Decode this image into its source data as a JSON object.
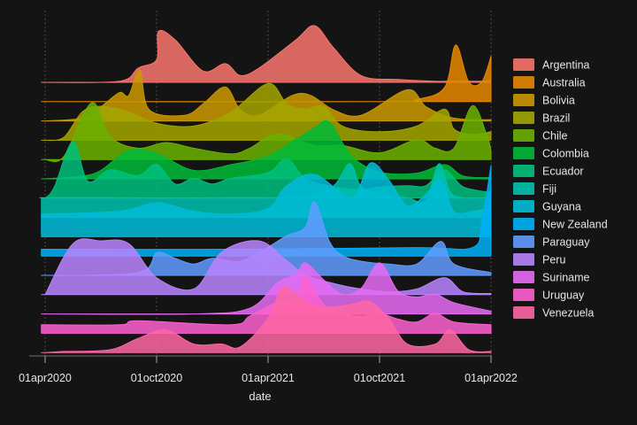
{
  "chart_data": {
    "type": "ridgeline",
    "title": "",
    "xlabel": "date",
    "ylabel": "",
    "background": "#141414",
    "x_ticks": [
      "01apr2020",
      "01oct2020",
      "01apr2021",
      "01oct2021",
      "01apr2022"
    ],
    "x_tick_months": [
      0,
      6,
      12,
      18,
      24
    ],
    "xlim_months": [
      -0.2,
      24.1
    ],
    "grid": "vertical-dotted",
    "legend_position": "right",
    "series": [
      {
        "name": "Argentina",
        "color": "#F8766D",
        "points": [
          [
            0,
            0
          ],
          [
            4,
            0.02
          ],
          [
            5,
            0.25
          ],
          [
            6,
            0.4
          ],
          [
            6.1,
            0.9
          ],
          [
            7,
            0.75
          ],
          [
            8.5,
            0.2
          ],
          [
            9.7,
            0.33
          ],
          [
            10.5,
            0.12
          ],
          [
            11.5,
            0.25
          ],
          [
            13.5,
            0.75
          ],
          [
            14.5,
            1.0
          ],
          [
            15.5,
            0.62
          ],
          [
            17,
            0.12
          ],
          [
            19,
            0.05
          ],
          [
            21,
            0.02
          ],
          [
            22,
            0.02
          ],
          [
            24,
            0.02
          ]
        ]
      },
      {
        "name": "Australia",
        "color": "#E58700",
        "points": [
          [
            0,
            0
          ],
          [
            18,
            0
          ],
          [
            20,
            0.04
          ],
          [
            21.5,
            0.25
          ],
          [
            22.1,
            1.0
          ],
          [
            22.8,
            0.35
          ],
          [
            23.5,
            0.35
          ],
          [
            24,
            0.8
          ]
        ]
      },
      {
        "name": "Bolivia",
        "color": "#C99800",
        "points": [
          [
            0,
            0
          ],
          [
            2,
            0.05
          ],
          [
            3,
            0.25
          ],
          [
            4,
            0.5
          ],
          [
            4.5,
            0.45
          ],
          [
            5.1,
            0.9
          ],
          [
            5.6,
            0.2
          ],
          [
            7.5,
            0.1
          ],
          [
            8.5,
            0.3
          ],
          [
            9.7,
            0.6
          ],
          [
            10.5,
            0.2
          ],
          [
            11.5,
            0.1
          ],
          [
            13.3,
            0.45
          ],
          [
            14.3,
            0.45
          ],
          [
            15.5,
            0.2
          ],
          [
            17,
            0.1
          ],
          [
            19.5,
            0.55
          ],
          [
            20.5,
            0.25
          ],
          [
            22,
            0.05
          ],
          [
            24,
            0.02
          ]
        ]
      },
      {
        "name": "Brazil",
        "color": "#A3A500",
        "points": [
          [
            0,
            0
          ],
          [
            1,
            0.05
          ],
          [
            2,
            0.5
          ],
          [
            3,
            0.6
          ],
          [
            4.5,
            0.5
          ],
          [
            6,
            0.3
          ],
          [
            8,
            0.25
          ],
          [
            10,
            0.5
          ],
          [
            12,
            1.0
          ],
          [
            13,
            0.65
          ],
          [
            14,
            0.55
          ],
          [
            15,
            0.6
          ],
          [
            16,
            0.25
          ],
          [
            18,
            0.15
          ],
          [
            20,
            0.25
          ],
          [
            21.5,
            0.55
          ],
          [
            22,
            0.2
          ],
          [
            23,
            0.1
          ],
          [
            24,
            0.15
          ]
        ]
      },
      {
        "name": "Chile",
        "color": "#6BB100",
        "points": [
          [
            0,
            0
          ],
          [
            1,
            0.05
          ],
          [
            2.5,
            1.0
          ],
          [
            3.5,
            0.4
          ],
          [
            5,
            0.2
          ],
          [
            6.5,
            0.3
          ],
          [
            8,
            0.2
          ],
          [
            10,
            0.1
          ],
          [
            11,
            0.2
          ],
          [
            12.5,
            0.45
          ],
          [
            14.5,
            0.25
          ],
          [
            16,
            0.25
          ],
          [
            18,
            0.12
          ],
          [
            20,
            0.35
          ],
          [
            21,
            0.2
          ],
          [
            22,
            0.2
          ],
          [
            23,
            0.95
          ],
          [
            23.8,
            0.4
          ],
          [
            24,
            0.15
          ]
        ]
      },
      {
        "name": "Colombia",
        "color": "#00BA38",
        "points": [
          [
            0,
            0
          ],
          [
            2,
            0.05
          ],
          [
            3,
            0.15
          ],
          [
            4.5,
            0.5
          ],
          [
            6,
            0.45
          ],
          [
            8,
            0.15
          ],
          [
            10,
            0.25
          ],
          [
            12,
            0.4
          ],
          [
            13.5,
            0.7
          ],
          [
            14.5,
            0.9
          ],
          [
            15.3,
            1.0
          ],
          [
            16.5,
            0.4
          ],
          [
            18,
            0.12
          ],
          [
            20,
            0.1
          ],
          [
            21.5,
            0.25
          ],
          [
            22.5,
            0.05
          ],
          [
            24,
            0.02
          ]
        ]
      },
      {
        "name": "Ecuador",
        "color": "#00BF7D",
        "points": [
          [
            0,
            0
          ],
          [
            0.5,
            0.2
          ],
          [
            1.5,
            1.0
          ],
          [
            2.3,
            0.3
          ],
          [
            3.5,
            0.5
          ],
          [
            5,
            0.4
          ],
          [
            6,
            0.6
          ],
          [
            7,
            0.25
          ],
          [
            8,
            0.35
          ],
          [
            9,
            0.25
          ],
          [
            10,
            0.35
          ],
          [
            12,
            0.45
          ],
          [
            13,
            0.7
          ],
          [
            14,
            0.35
          ],
          [
            15.5,
            0.2
          ],
          [
            17,
            0.15
          ],
          [
            18,
            0.2
          ],
          [
            19.5,
            0.22
          ],
          [
            20.5,
            0.22
          ],
          [
            21.5,
            0.5
          ],
          [
            22.5,
            0.2
          ],
          [
            24,
            0.1
          ]
        ]
      },
      {
        "name": "Fiji",
        "color": "#00C0AF",
        "points": [
          [
            -0.2,
            0.35
          ],
          [
            1,
            0.35
          ],
          [
            12,
            0.35
          ],
          [
            14,
            0.38
          ],
          [
            15.5,
            0.55
          ],
          [
            16.4,
            0.95
          ],
          [
            17,
            0.55
          ],
          [
            18,
            0.42
          ],
          [
            19.5,
            0.35
          ],
          [
            20.5,
            0.3
          ],
          [
            21.2,
            0.95
          ],
          [
            21.8,
            0.45
          ],
          [
            22.5,
            0.35
          ],
          [
            24,
            0.35
          ]
        ]
      },
      {
        "name": "Guyana",
        "color": "#00BCD8",
        "points": [
          [
            -0.2,
            0.4
          ],
          [
            4,
            0.45
          ],
          [
            6,
            0.6
          ],
          [
            8,
            0.45
          ],
          [
            10,
            0.4
          ],
          [
            12,
            0.5
          ],
          [
            13,
            0.9
          ],
          [
            14.5,
            1.1
          ],
          [
            16.5,
            0.7
          ],
          [
            17.5,
            1.3
          ],
          [
            18.5,
            1.0
          ],
          [
            19.5,
            0.55
          ],
          [
            20.5,
            0.75
          ],
          [
            21.3,
            1.0
          ],
          [
            22,
            0.45
          ],
          [
            23,
            0.45
          ],
          [
            24,
            0.5
          ]
        ]
      },
      {
        "name": "New Zealand",
        "color": "#00B0F6",
        "points": [
          [
            -0.2,
            0.12
          ],
          [
            10,
            0.12
          ],
          [
            20,
            0.15
          ],
          [
            23,
            0.15
          ],
          [
            23.5,
            0.6
          ],
          [
            24,
            1.6
          ]
        ]
      },
      {
        "name": "Paraguay",
        "color": "#619CFF",
        "points": [
          [
            0,
            0
          ],
          [
            5,
            0.05
          ],
          [
            6,
            0.4
          ],
          [
            7,
            0.3
          ],
          [
            8,
            0.2
          ],
          [
            9,
            0.3
          ],
          [
            10.5,
            0.25
          ],
          [
            12,
            0.5
          ],
          [
            13,
            0.7
          ],
          [
            14,
            0.85
          ],
          [
            14.5,
            1.3
          ],
          [
            15.3,
            0.6
          ],
          [
            16,
            0.35
          ],
          [
            17,
            0.25
          ],
          [
            18.5,
            0.2
          ],
          [
            20,
            0.2
          ],
          [
            21.3,
            0.6
          ],
          [
            22,
            0.2
          ],
          [
            24,
            0.05
          ]
        ]
      },
      {
        "name": "Peru",
        "color": "#B983FF",
        "points": [
          [
            0,
            0
          ],
          [
            1.5,
            0.9
          ],
          [
            3,
            0.95
          ],
          [
            4.5,
            0.9
          ],
          [
            6,
            0.3
          ],
          [
            8,
            0.1
          ],
          [
            9.5,
            0.75
          ],
          [
            11.5,
            0.95
          ],
          [
            13,
            0.6
          ],
          [
            14,
            0.35
          ],
          [
            15.5,
            0.2
          ],
          [
            17,
            0.1
          ],
          [
            18.5,
            0.05
          ],
          [
            20,
            0.1
          ],
          [
            21.5,
            0.3
          ],
          [
            22.5,
            0.05
          ],
          [
            24,
            0.02
          ]
        ]
      },
      {
        "name": "Suriname",
        "color": "#E76BF3",
        "points": [
          [
            0,
            0
          ],
          [
            8,
            0
          ],
          [
            11,
            0.1
          ],
          [
            12.5,
            0.55
          ],
          [
            13.5,
            0.7
          ],
          [
            14,
            0.9
          ],
          [
            15,
            0.6
          ],
          [
            16,
            0.35
          ],
          [
            17,
            0.45
          ],
          [
            18,
            0.9
          ],
          [
            19,
            0.4
          ],
          [
            20,
            0.3
          ],
          [
            21,
            0.35
          ],
          [
            22,
            0.2
          ],
          [
            24,
            0.05
          ]
        ]
      },
      {
        "name": "Uruguay",
        "color": "#FD61D1",
        "points": [
          [
            -0.2,
            0.15
          ],
          [
            4,
            0.15
          ],
          [
            5,
            0.22
          ],
          [
            10,
            0.15
          ],
          [
            11,
            0.3
          ],
          [
            12.5,
            0.55
          ],
          [
            13.5,
            0.6
          ],
          [
            14,
            1.0
          ],
          [
            15,
            0.5
          ],
          [
            16,
            0.35
          ],
          [
            17,
            0.3
          ],
          [
            18,
            0.35
          ],
          [
            19,
            0.25
          ],
          [
            20,
            0.2
          ],
          [
            21,
            0.35
          ],
          [
            22,
            0.2
          ],
          [
            24,
            0.15
          ]
        ]
      },
      {
        "name": "Venezuela",
        "color": "#FF67A4",
        "points": [
          [
            0,
            0
          ],
          [
            1,
            0.02
          ],
          [
            3.5,
            0.05
          ],
          [
            5,
            0.25
          ],
          [
            6.5,
            0.4
          ],
          [
            8,
            0.15
          ],
          [
            9.5,
            0.15
          ],
          [
            10.5,
            0.1
          ],
          [
            12,
            0.6
          ],
          [
            12.8,
            1.15
          ],
          [
            14,
            0.9
          ],
          [
            15,
            0.8
          ],
          [
            16.5,
            0.85
          ],
          [
            17.5,
            0.9
          ],
          [
            18.5,
            0.6
          ],
          [
            19.5,
            0.15
          ],
          [
            21,
            0.15
          ],
          [
            21.8,
            0.4
          ],
          [
            22.8,
            0.05
          ],
          [
            24,
            0.02
          ]
        ]
      }
    ]
  }
}
